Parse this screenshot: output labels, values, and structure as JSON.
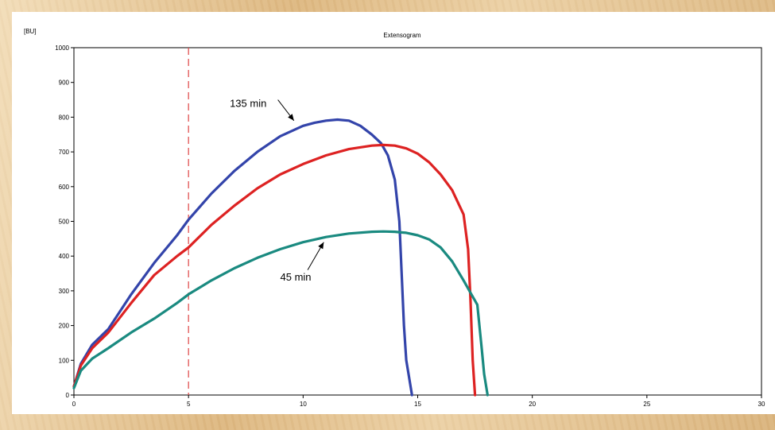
{
  "chart_data": {
    "type": "line",
    "title": "Extensogram",
    "ylabel": "[BU]",
    "xlabel": "",
    "xlim": [
      0,
      30
    ],
    "ylim": [
      0,
      1000
    ],
    "x_ticks": [
      "0",
      "5",
      "10",
      "15",
      "20",
      "25",
      "30"
    ],
    "y_ticks": [
      "0",
      "100",
      "200",
      "300",
      "400",
      "500",
      "600",
      "700",
      "800",
      "900",
      "1000"
    ],
    "grid": false,
    "legend": "none",
    "reference_line": {
      "x": 5,
      "color": "#e05050",
      "style": "dashed"
    },
    "annotations": [
      {
        "text": "135 min",
        "x": 6.8,
        "y": 830,
        "arrow_from": [
          8.9,
          850
        ],
        "arrow_to": [
          9.6,
          790
        ]
      },
      {
        "text": "45 min",
        "x": 9.0,
        "y": 330,
        "arrow_from": [
          10.2,
          360
        ],
        "arrow_to": [
          10.9,
          440
        ]
      }
    ],
    "series": [
      {
        "color": "#3344aa",
        "x": [
          0,
          0.3,
          0.8,
          1.5,
          2.5,
          3.5,
          4.5,
          5,
          6,
          7,
          8,
          9,
          10,
          10.5,
          11,
          11.5,
          12,
          12.5,
          13,
          13.4,
          13.7,
          14,
          14.2,
          14.3,
          14.4,
          14.5,
          14.6,
          14.75
        ],
        "y": [
          25,
          90,
          145,
          190,
          290,
          380,
          460,
          505,
          580,
          645,
          700,
          745,
          775,
          784,
          790,
          793,
          790,
          775,
          750,
          725,
          690,
          620,
          500,
          350,
          200,
          100,
          60,
          0
        ]
      },
      {
        "color": "#dd2222",
        "x": [
          0,
          0.3,
          0.8,
          1.5,
          2.5,
          3.5,
          4.5,
          5,
          6,
          7,
          8,
          9,
          10,
          11,
          12,
          13,
          13.5,
          14,
          14.5,
          15,
          15.5,
          16,
          16.5,
          17,
          17.2,
          17.3,
          17.4,
          17.5
        ],
        "y": [
          25,
          85,
          135,
          180,
          265,
          345,
          400,
          425,
          490,
          545,
          595,
          635,
          665,
          690,
          708,
          718,
          720,
          718,
          710,
          695,
          670,
          635,
          590,
          520,
          420,
          280,
          100,
          0
        ]
      },
      {
        "color": "#1a8a80",
        "x": [
          0,
          0.3,
          0.8,
          1.5,
          2.5,
          3.5,
          4.5,
          5,
          6,
          7,
          8,
          9,
          10,
          11,
          12,
          13,
          13.5,
          14,
          14.5,
          15,
          15.5,
          16,
          16.5,
          17,
          17.3,
          17.6,
          17.8,
          17.9,
          18.05
        ],
        "y": [
          20,
          70,
          105,
          135,
          180,
          220,
          265,
          290,
          330,
          365,
          395,
          420,
          440,
          455,
          465,
          470,
          471,
          470,
          467,
          460,
          448,
          425,
          385,
          330,
          295,
          260,
          130,
          60,
          0
        ]
      }
    ]
  }
}
